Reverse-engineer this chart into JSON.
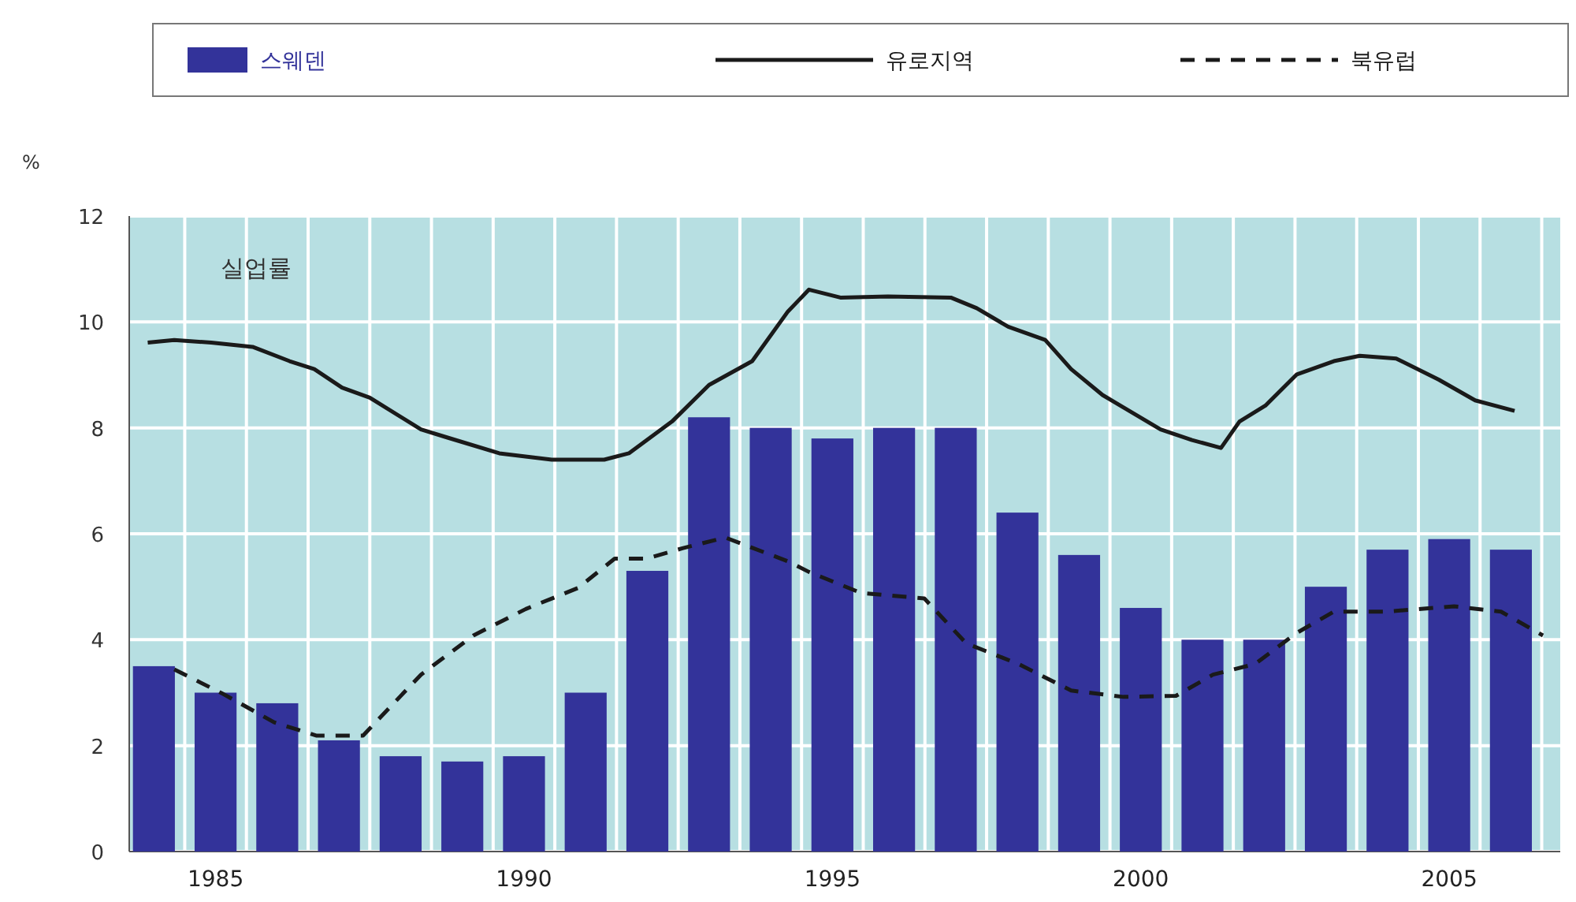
{
  "chart_data": {
    "type": "bar",
    "title": "실업률",
    "ylabel": "%",
    "legend": "top",
    "grid": true,
    "x": [
      1984,
      1985,
      1986,
      1987,
      1988,
      1989,
      1990,
      1991,
      1992,
      1993,
      1994,
      1995,
      1996,
      1997,
      1998,
      1999,
      2000,
      2001,
      2002,
      2003,
      2004,
      2005,
      2006
    ],
    "xlim": [
      1983.6,
      2006.8
    ],
    "xticks": [
      {
        "value": 1984.5,
        "label": null
      },
      1985,
      {
        "value": 1985.5,
        "label": null
      },
      {
        "value": 1986.5,
        "label": null
      },
      {
        "value": 1987.5,
        "label": null
      },
      {
        "value": 1988.5,
        "label": null
      },
      {
        "value": 1989.5,
        "label": null
      },
      1990,
      {
        "value": 1990.5,
        "label": null
      },
      {
        "value": 1991.5,
        "label": null
      },
      {
        "value": 1992.5,
        "label": null
      },
      {
        "value": 1993.5,
        "label": null
      },
      {
        "value": 1994.5,
        "label": null
      },
      1995,
      {
        "value": 1995.5,
        "label": null
      },
      {
        "value": 1996.5,
        "label": null
      },
      {
        "value": 1997.5,
        "label": null
      },
      {
        "value": 1998.5,
        "label": null
      },
      {
        "value": 1999.5,
        "label": null
      },
      2000,
      {
        "value": 2000.5,
        "label": null
      },
      {
        "value": 2001.5,
        "label": null
      },
      {
        "value": 2002.5,
        "label": null
      },
      {
        "value": 2003.5,
        "label": null
      },
      {
        "value": 2004.5,
        "label": null
      },
      2005,
      {
        "value": 2005.5,
        "label": null
      },
      {
        "value": 2006.5,
        "label": null
      }
    ],
    "ylim": [
      0,
      12
    ],
    "yticks": [
      0,
      2,
      4,
      6,
      8,
      10,
      12
    ],
    "series": [
      {
        "name": "스웨덴",
        "color": "#33339a",
        "values": [
          3.5,
          3.0,
          2.8,
          2.1,
          1.8,
          1.7,
          1.8,
          3.0,
          5.3,
          8.2,
          8.0,
          7.8,
          8.0,
          8.0,
          6.4,
          5.6,
          4.6,
          4.0,
          4.0,
          5.0,
          5.7,
          5.9,
          5.7
        ]
      },
      {
        "name": "유로지역",
        "type": "line",
        "line_style": "solid",
        "color": "#1a1a1a",
        "x": [
          1983.9,
          1984.33,
          1984.93,
          1985.6,
          1986.2,
          1986.6,
          1987.05,
          1987.5,
          1988.33,
          1988.75,
          1989.6,
          1990.45,
          1991.3,
          1991.7,
          1992.4,
          1993.0,
          1993.7,
          1994.28,
          1994.62,
          1995.13,
          1995.9,
          1996.92,
          1997.34,
          1997.85,
          1998.45,
          1998.87,
          1999.38,
          2000.32,
          2000.83,
          2001.3,
          2001.6,
          2002.02,
          2002.53,
          2003.13,
          2003.55,
          2004.14,
          2004.83,
          2005.42,
          2006.06
        ],
        "values": [
          9.61,
          9.66,
          9.61,
          9.53,
          9.26,
          9.11,
          8.76,
          8.57,
          7.97,
          7.82,
          7.52,
          7.4,
          7.4,
          7.52,
          8.12,
          8.81,
          9.26,
          10.2,
          10.61,
          10.46,
          10.48,
          10.46,
          10.26,
          9.91,
          9.66,
          9.11,
          8.62,
          7.97,
          7.77,
          7.62,
          8.12,
          8.42,
          9.01,
          9.26,
          9.36,
          9.31,
          8.91,
          8.52,
          8.32
        ]
      },
      {
        "name": "북유럽",
        "type": "line",
        "line_style": "dashed",
        "color": "#1a1a1a",
        "x": [
          1984.33,
          1985.1,
          1985.95,
          1986.63,
          1987.39,
          1988.33,
          1989.18,
          1990.03,
          1990.88,
          1991.47,
          1991.98,
          1992.58,
          1993.26,
          1994.28,
          1994.62,
          1995.47,
          1996.49,
          1997.17,
          1998.02,
          1998.87,
          1999.72,
          2000.57,
          2001.17,
          2001.85,
          2002.53,
          2003.13,
          2003.98,
          2005.08,
          2005.84,
          2006.52
        ],
        "values": [
          3.44,
          2.99,
          2.44,
          2.19,
          2.19,
          3.34,
          4.08,
          4.58,
          4.98,
          5.53,
          5.53,
          5.73,
          5.93,
          5.48,
          5.28,
          4.88,
          4.78,
          3.93,
          3.54,
          3.04,
          2.92,
          2.94,
          3.34,
          3.54,
          4.13,
          4.53,
          4.53,
          4.63,
          4.53,
          4.08
        ]
      }
    ]
  }
}
